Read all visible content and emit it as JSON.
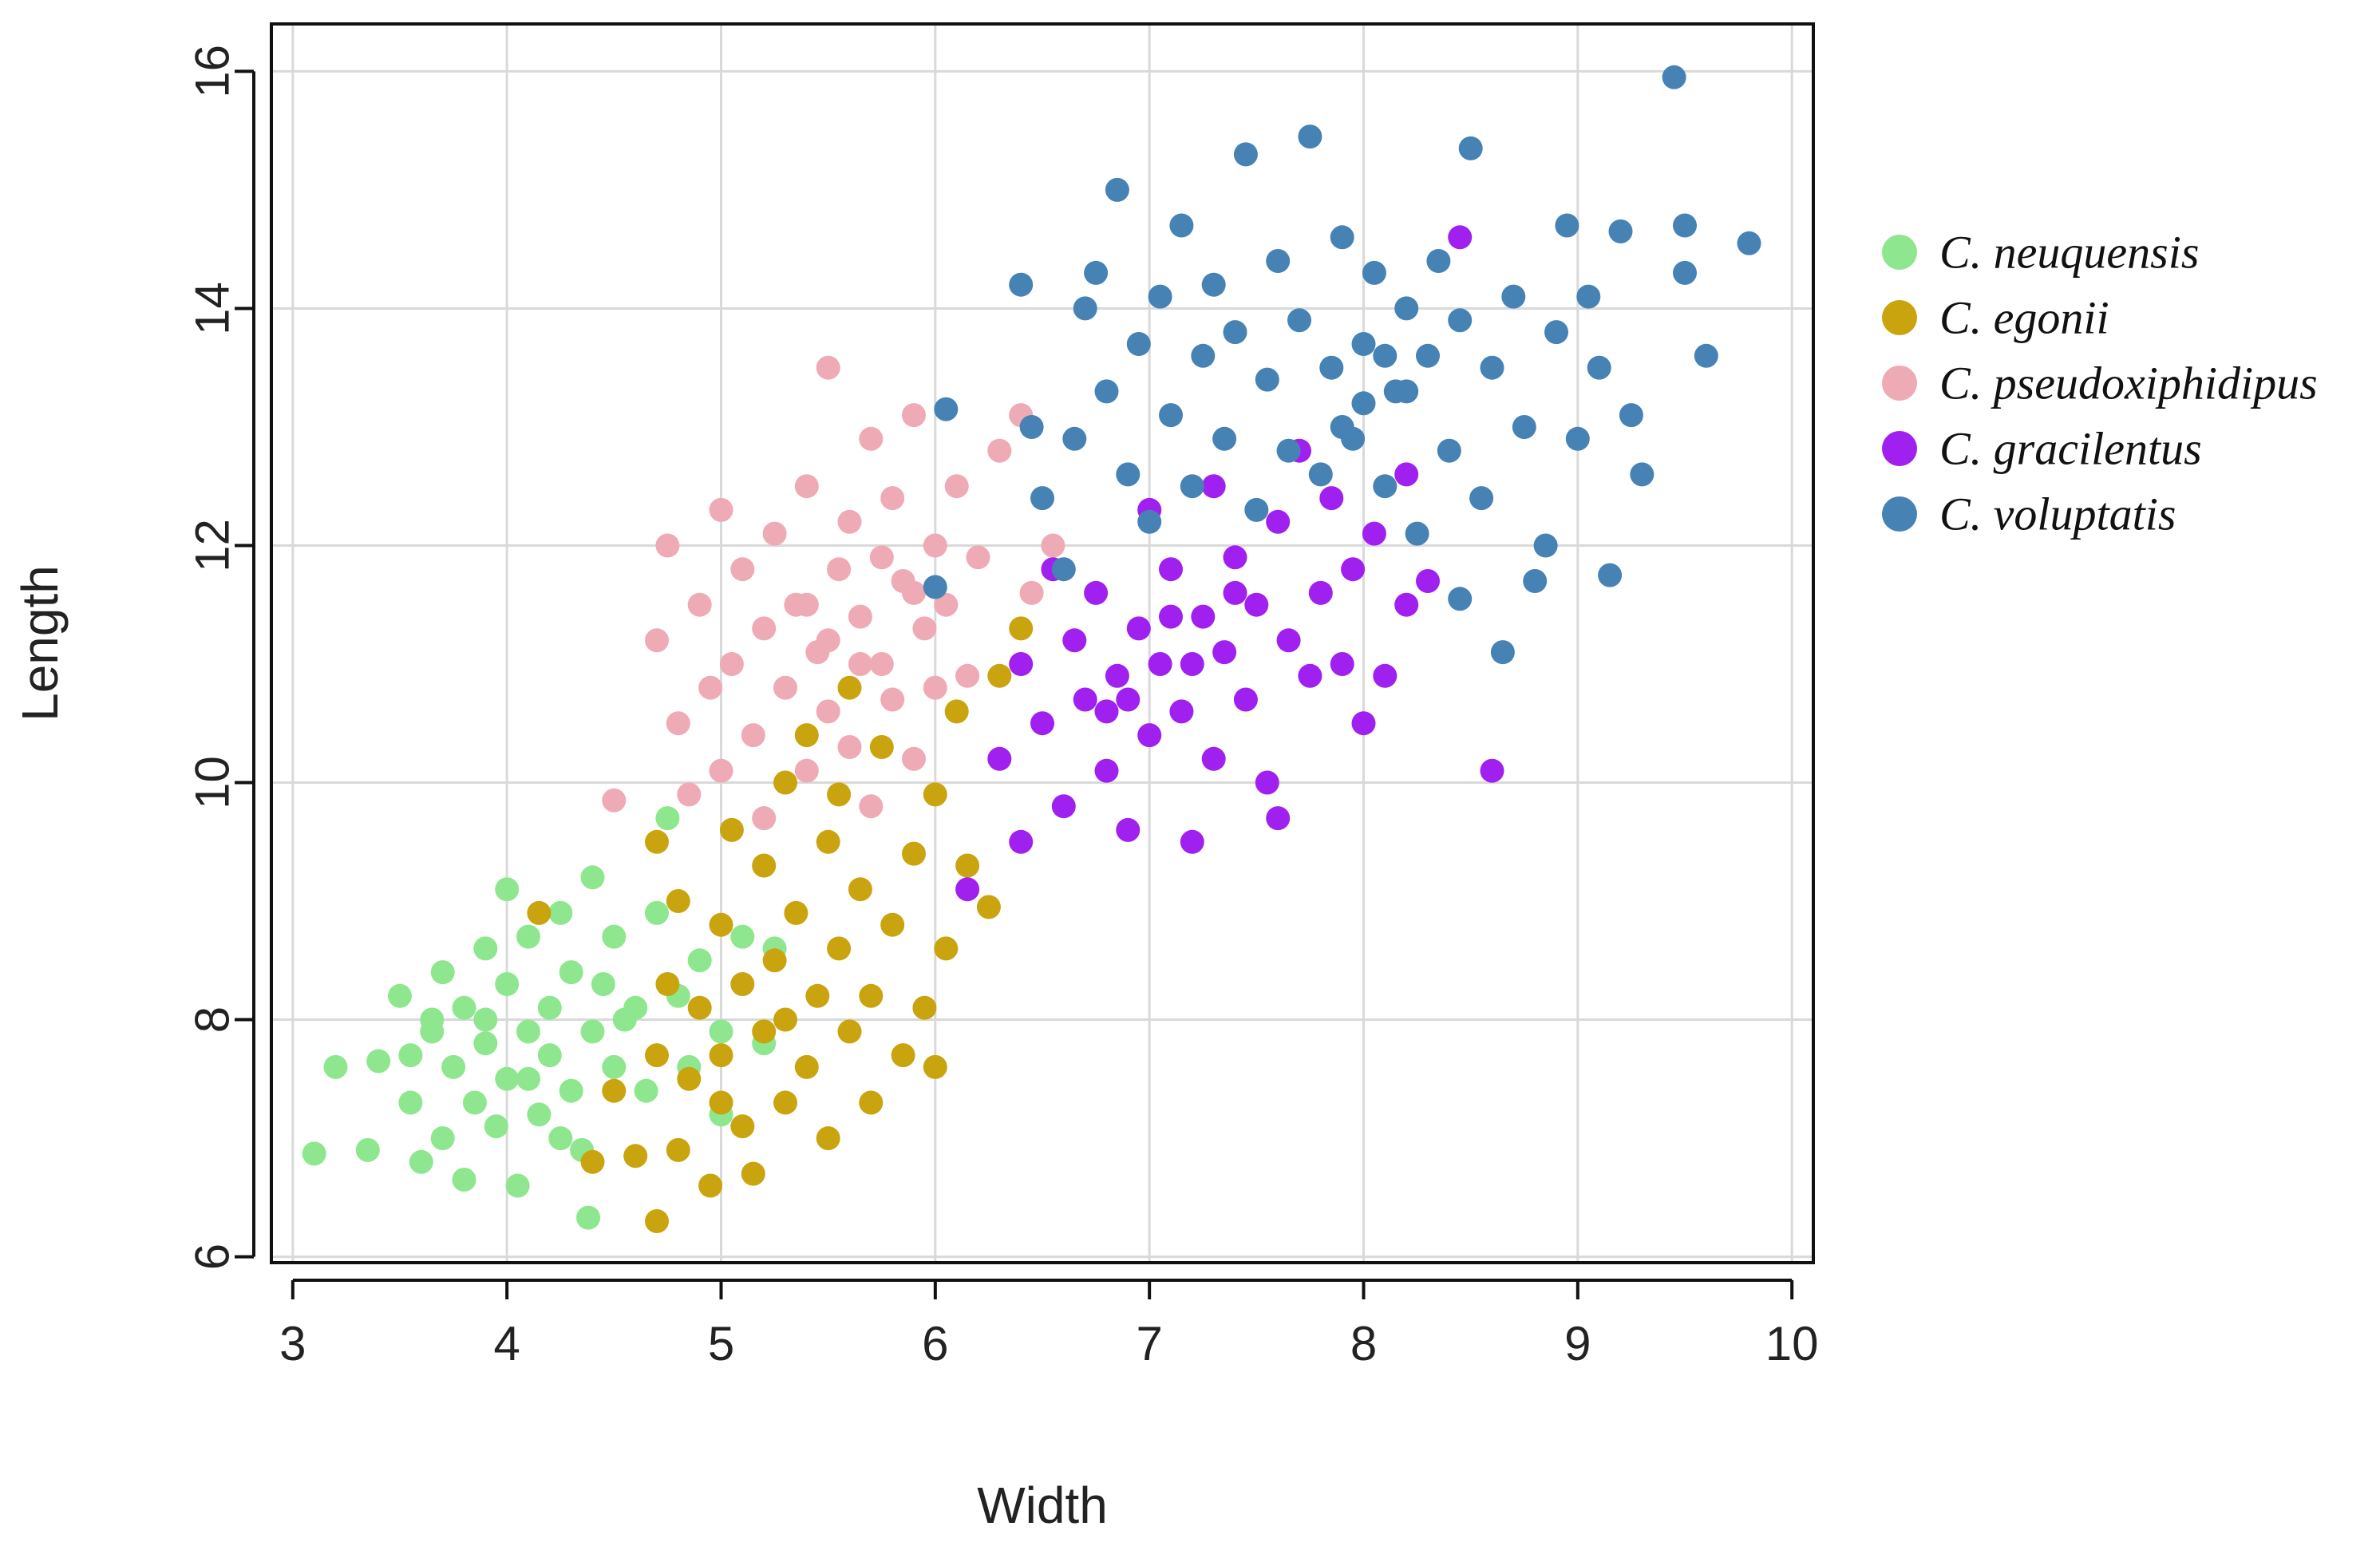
{
  "chart_data": {
    "type": "scatter",
    "title": "",
    "xlabel": "Width",
    "ylabel": "Length",
    "xlim": [
      2.9,
      10.1
    ],
    "ylim": [
      5.95,
      16.4
    ],
    "xticks": [
      3,
      4,
      5,
      6,
      7,
      8,
      9,
      10
    ],
    "yticks": [
      6,
      8,
      10,
      12,
      14,
      16
    ],
    "grid": true,
    "legend_position": "right",
    "series": [
      {
        "name": "C. neuquensis",
        "color": "#8ee68e",
        "points": [
          [
            3.1,
            6.87
          ],
          [
            3.2,
            7.6
          ],
          [
            3.35,
            6.9
          ],
          [
            3.4,
            7.65
          ],
          [
            3.5,
            8.2
          ],
          [
            3.55,
            7.3
          ],
          [
            3.6,
            6.8
          ],
          [
            3.65,
            7.9
          ],
          [
            3.7,
            8.4
          ],
          [
            3.7,
            7.0
          ],
          [
            3.75,
            7.6
          ],
          [
            3.8,
            8.1
          ],
          [
            3.8,
            6.65
          ],
          [
            3.85,
            7.3
          ],
          [
            3.9,
            8.6
          ],
          [
            3.9,
            7.8
          ],
          [
            3.95,
            7.1
          ],
          [
            4.0,
            8.3
          ],
          [
            4.0,
            7.5
          ],
          [
            4.0,
            9.1
          ],
          [
            4.05,
            6.6
          ],
          [
            4.1,
            7.9
          ],
          [
            4.1,
            8.7
          ],
          [
            4.15,
            7.2
          ],
          [
            4.2,
            8.1
          ],
          [
            4.2,
            7.7
          ],
          [
            4.25,
            8.9
          ],
          [
            4.3,
            7.4
          ],
          [
            4.3,
            8.4
          ],
          [
            4.35,
            6.9
          ],
          [
            4.4,
            7.9
          ],
          [
            4.4,
            9.2
          ],
          [
            4.45,
            8.3
          ],
          [
            4.5,
            7.6
          ],
          [
            4.5,
            8.7
          ],
          [
            4.6,
            8.1
          ],
          [
            4.65,
            7.4
          ],
          [
            4.7,
            8.9
          ],
          [
            4.75,
            9.7
          ],
          [
            4.8,
            8.2
          ],
          [
            4.85,
            7.6
          ],
          [
            4.9,
            8.5
          ],
          [
            5.0,
            7.2
          ],
          [
            5.0,
            7.9
          ],
          [
            5.1,
            8.7
          ],
          [
            5.2,
            7.8
          ],
          [
            5.25,
            8.6
          ],
          [
            4.38,
            6.33
          ],
          [
            3.65,
            8.0
          ],
          [
            3.9,
            8.0
          ],
          [
            4.1,
            7.5
          ],
          [
            3.55,
            7.7
          ],
          [
            4.55,
            8.0
          ],
          [
            4.25,
            7.0
          ]
        ]
      },
      {
        "name": "C. egonii",
        "color": "#c9a40f",
        "points": [
          [
            4.15,
            8.9
          ],
          [
            4.4,
            6.8
          ],
          [
            4.5,
            7.4
          ],
          [
            4.6,
            6.85
          ],
          [
            4.7,
            6.3
          ],
          [
            4.7,
            7.7
          ],
          [
            4.75,
            8.3
          ],
          [
            4.8,
            6.9
          ],
          [
            4.8,
            9.0
          ],
          [
            4.85,
            7.5
          ],
          [
            4.9,
            8.1
          ],
          [
            4.95,
            6.6
          ],
          [
            5.0,
            7.7
          ],
          [
            5.0,
            8.8
          ],
          [
            5.05,
            9.6
          ],
          [
            5.1,
            7.1
          ],
          [
            5.1,
            8.3
          ],
          [
            5.15,
            6.7
          ],
          [
            5.2,
            9.3
          ],
          [
            5.2,
            7.9
          ],
          [
            5.25,
            8.5
          ],
          [
            5.3,
            7.3
          ],
          [
            5.3,
            10.0
          ],
          [
            5.35,
            8.9
          ],
          [
            5.4,
            7.6
          ],
          [
            5.45,
            8.2
          ],
          [
            5.5,
            9.5
          ],
          [
            5.5,
            7.0
          ],
          [
            5.55,
            8.6
          ],
          [
            5.6,
            7.9
          ],
          [
            5.65,
            9.1
          ],
          [
            5.7,
            8.2
          ],
          [
            5.7,
            7.3
          ],
          [
            5.75,
            10.3
          ],
          [
            5.8,
            8.8
          ],
          [
            5.85,
            7.7
          ],
          [
            5.9,
            9.4
          ],
          [
            5.95,
            8.1
          ],
          [
            6.0,
            7.6
          ],
          [
            6.0,
            9.9
          ],
          [
            6.05,
            8.6
          ],
          [
            6.1,
            10.6
          ],
          [
            6.15,
            9.3
          ],
          [
            6.25,
            8.95
          ],
          [
            6.3,
            10.9
          ],
          [
            6.4,
            11.3
          ],
          [
            5.4,
            10.4
          ],
          [
            5.6,
            10.8
          ],
          [
            4.7,
            9.5
          ],
          [
            5.0,
            7.3
          ],
          [
            5.3,
            8.0
          ],
          [
            5.55,
            9.9
          ]
        ]
      },
      {
        "name": "C. pseudoxiphidipus",
        "color": "#eeaab5",
        "points": [
          [
            4.5,
            9.85
          ],
          [
            4.7,
            11.2
          ],
          [
            4.75,
            12.0
          ],
          [
            4.8,
            10.5
          ],
          [
            4.85,
            9.9
          ],
          [
            4.9,
            11.5
          ],
          [
            4.95,
            10.8
          ],
          [
            5.0,
            12.3
          ],
          [
            5.0,
            10.1
          ],
          [
            5.05,
            11.0
          ],
          [
            5.1,
            11.8
          ],
          [
            5.15,
            10.4
          ],
          [
            5.2,
            11.3
          ],
          [
            5.2,
            9.7
          ],
          [
            5.25,
            12.1
          ],
          [
            5.3,
            10.8
          ],
          [
            5.35,
            11.5
          ],
          [
            5.4,
            10.1
          ],
          [
            5.4,
            12.5
          ],
          [
            5.45,
            11.1
          ],
          [
            5.5,
            13.5
          ],
          [
            5.5,
            10.6
          ],
          [
            5.55,
            11.8
          ],
          [
            5.6,
            12.2
          ],
          [
            5.6,
            10.3
          ],
          [
            5.65,
            11.4
          ],
          [
            5.7,
            12.9
          ],
          [
            5.7,
            9.8
          ],
          [
            5.75,
            11.0
          ],
          [
            5.8,
            12.4
          ],
          [
            5.8,
            10.7
          ],
          [
            5.85,
            11.7
          ],
          [
            5.9,
            13.1
          ],
          [
            5.9,
            10.2
          ],
          [
            5.95,
            11.3
          ],
          [
            6.0,
            12.0
          ],
          [
            6.0,
            10.8
          ],
          [
            6.05,
            11.5
          ],
          [
            6.1,
            12.5
          ],
          [
            6.15,
            10.9
          ],
          [
            6.2,
            11.9
          ],
          [
            6.3,
            12.8
          ],
          [
            6.4,
            13.1
          ],
          [
            6.45,
            11.6
          ],
          [
            6.55,
            12.0
          ],
          [
            5.5,
            11.2
          ],
          [
            5.65,
            11.0
          ],
          [
            5.75,
            11.9
          ],
          [
            5.4,
            11.5
          ],
          [
            5.9,
            11.6
          ]
        ]
      },
      {
        "name": "C. gracilentus",
        "color": "#a020ef",
        "points": [
          [
            6.15,
            9.1
          ],
          [
            6.3,
            10.2
          ],
          [
            6.4,
            11.0
          ],
          [
            6.4,
            9.5
          ],
          [
            6.5,
            10.5
          ],
          [
            6.55,
            11.8
          ],
          [
            6.6,
            9.8
          ],
          [
            6.65,
            11.2
          ],
          [
            6.7,
            10.7
          ],
          [
            6.75,
            11.6
          ],
          [
            6.8,
            10.1
          ],
          [
            6.85,
            10.9
          ],
          [
            6.9,
            9.6
          ],
          [
            6.95,
            11.3
          ],
          [
            7.0,
            12.3
          ],
          [
            7.0,
            10.4
          ],
          [
            7.05,
            11.0
          ],
          [
            7.1,
            11.8
          ],
          [
            7.15,
            10.6
          ],
          [
            7.2,
            9.5
          ],
          [
            7.25,
            11.4
          ],
          [
            7.3,
            12.5
          ],
          [
            7.3,
            10.2
          ],
          [
            7.35,
            11.1
          ],
          [
            7.4,
            11.9
          ],
          [
            7.45,
            10.7
          ],
          [
            7.5,
            11.5
          ],
          [
            7.55,
            10.0
          ],
          [
            7.6,
            12.2
          ],
          [
            7.6,
            9.7
          ],
          [
            7.65,
            11.2
          ],
          [
            7.7,
            12.8
          ],
          [
            7.75,
            10.9
          ],
          [
            7.8,
            11.6
          ],
          [
            7.85,
            12.4
          ],
          [
            7.9,
            11.0
          ],
          [
            7.95,
            11.8
          ],
          [
            8.0,
            10.5
          ],
          [
            8.05,
            12.1
          ],
          [
            8.1,
            10.9
          ],
          [
            8.2,
            11.5
          ],
          [
            8.2,
            12.6
          ],
          [
            8.3,
            11.7
          ],
          [
            8.45,
            14.6
          ],
          [
            8.6,
            10.1
          ],
          [
            6.9,
            10.7
          ],
          [
            7.2,
            11.0
          ],
          [
            7.4,
            11.6
          ],
          [
            6.8,
            10.6
          ],
          [
            7.1,
            11.4
          ]
        ]
      },
      {
        "name": "C. voluptatis",
        "color": "#4682b4",
        "points": [
          [
            6.0,
            11.65
          ],
          [
            6.05,
            13.15
          ],
          [
            6.4,
            14.2
          ],
          [
            6.45,
            13.0
          ],
          [
            6.5,
            12.4
          ],
          [
            6.6,
            11.8
          ],
          [
            6.65,
            12.9
          ],
          [
            6.7,
            14.0
          ],
          [
            6.75,
            14.3
          ],
          [
            6.8,
            13.3
          ],
          [
            6.85,
            15.0
          ],
          [
            6.9,
            12.6
          ],
          [
            6.95,
            13.7
          ],
          [
            7.0,
            12.2
          ],
          [
            7.05,
            14.1
          ],
          [
            7.1,
            13.1
          ],
          [
            7.15,
            14.7
          ],
          [
            7.2,
            12.5
          ],
          [
            7.25,
            13.6
          ],
          [
            7.3,
            14.2
          ],
          [
            7.35,
            12.9
          ],
          [
            7.4,
            13.8
          ],
          [
            7.45,
            15.3
          ],
          [
            7.5,
            12.3
          ],
          [
            7.55,
            13.4
          ],
          [
            7.6,
            14.4
          ],
          [
            7.65,
            12.8
          ],
          [
            7.7,
            13.9
          ],
          [
            7.75,
            15.45
          ],
          [
            7.8,
            12.6
          ],
          [
            7.85,
            13.5
          ],
          [
            7.9,
            14.6
          ],
          [
            7.95,
            12.9
          ],
          [
            8.0,
            13.7
          ],
          [
            8.05,
            14.3
          ],
          [
            8.1,
            12.5
          ],
          [
            8.15,
            13.3
          ],
          [
            8.2,
            14.0
          ],
          [
            8.25,
            12.1
          ],
          [
            8.3,
            13.6
          ],
          [
            8.35,
            14.4
          ],
          [
            8.4,
            12.8
          ],
          [
            8.45,
            13.9
          ],
          [
            8.5,
            15.35
          ],
          [
            8.55,
            12.4
          ],
          [
            8.6,
            13.5
          ],
          [
            8.65,
            11.1
          ],
          [
            8.7,
            14.1
          ],
          [
            8.75,
            13.0
          ],
          [
            8.8,
            11.7
          ],
          [
            8.85,
            12.0
          ],
          [
            8.9,
            13.8
          ],
          [
            8.95,
            14.7
          ],
          [
            9.0,
            12.9
          ],
          [
            9.05,
            14.1
          ],
          [
            9.1,
            13.5
          ],
          [
            9.15,
            11.75
          ],
          [
            9.2,
            14.65
          ],
          [
            9.25,
            13.1
          ],
          [
            9.3,
            12.6
          ],
          [
            9.45,
            15.95
          ],
          [
            9.5,
            14.3
          ],
          [
            9.5,
            14.7
          ],
          [
            9.6,
            13.6
          ],
          [
            9.8,
            14.55
          ],
          [
            8.45,
            11.55
          ],
          [
            8.0,
            13.2
          ],
          [
            8.2,
            13.3
          ],
          [
            7.9,
            13.0
          ],
          [
            8.1,
            13.6
          ]
        ]
      }
    ]
  }
}
